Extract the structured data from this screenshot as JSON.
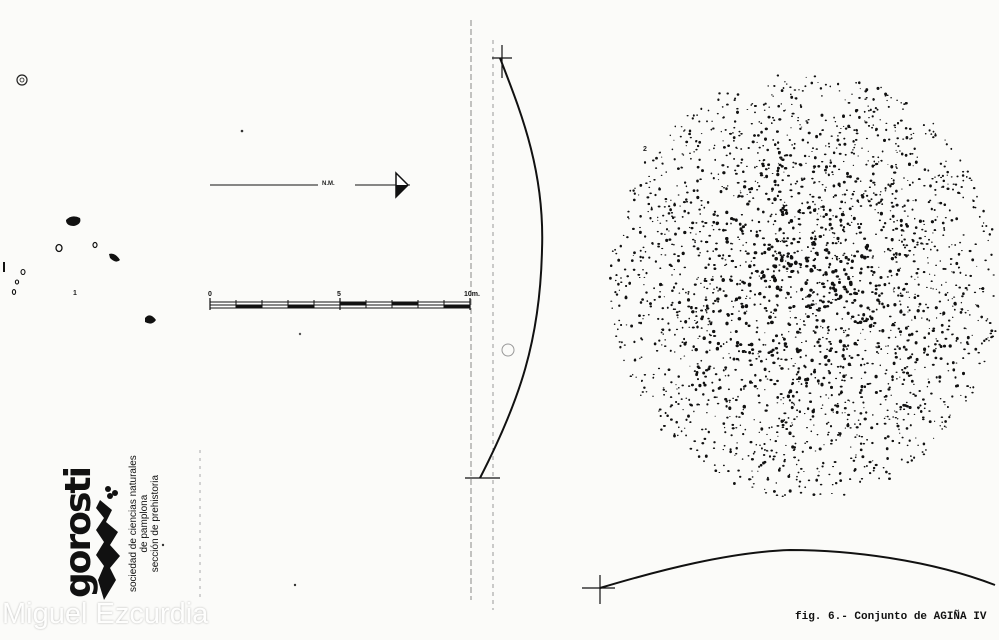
{
  "north_arrow": {
    "label": "N.M."
  },
  "scale_bar": {
    "labels": [
      "0",
      "5",
      "10m."
    ]
  },
  "figure_numbers": {
    "left": "1",
    "right": "2"
  },
  "logo": {
    "wordmark": "gorosti",
    "lines": [
      "sociedad de ciencias naturales",
      "de pamplona",
      "sección de prehistoria"
    ]
  },
  "caption": "fig. 6.- Conjunto de AGIÑA IV",
  "watermark": "Miguel Ezcurdia",
  "colors": {
    "ink": "#111111",
    "paper": "#fbfbf9"
  }
}
